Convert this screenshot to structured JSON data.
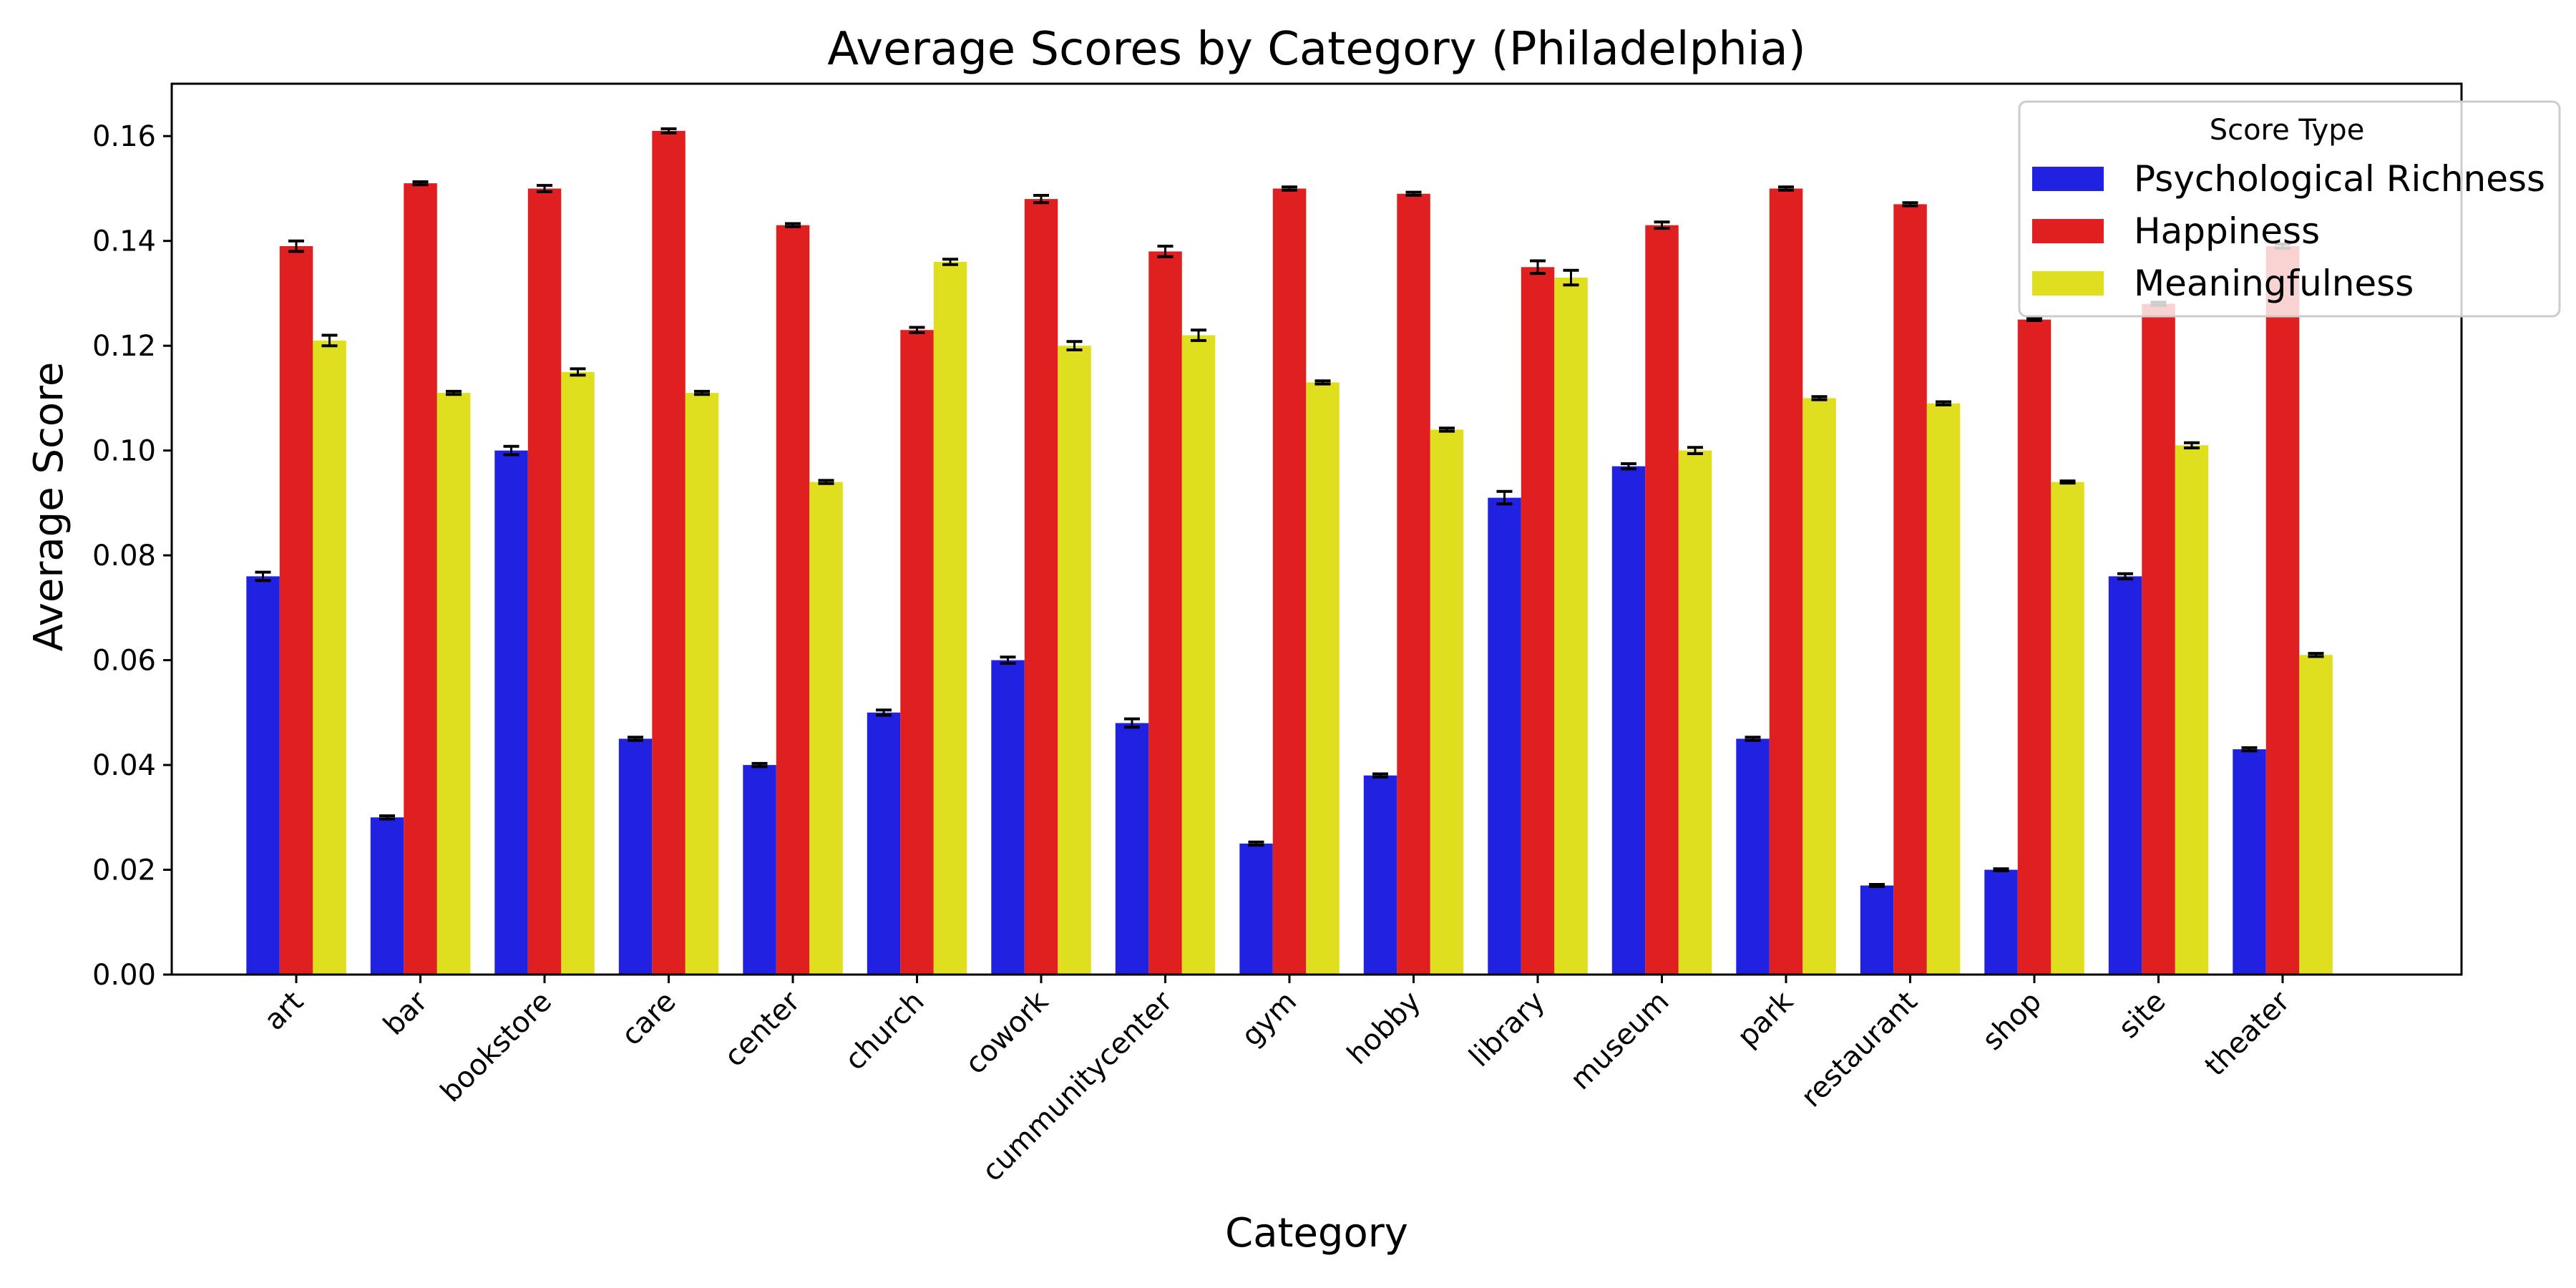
{
  "chart_data": {
    "type": "bar",
    "title": "Average Scores by Category (Philadelphia)",
    "xlabel": "Category",
    "ylabel": "Average Score",
    "ylim": [
      0,
      0.17
    ],
    "yticks": [
      "0.00",
      "0.02",
      "0.04",
      "0.06",
      "0.08",
      "0.10",
      "0.12",
      "0.14",
      "0.16"
    ],
    "grid": false,
    "legend": {
      "title": "Score Type",
      "position": "top-right"
    },
    "categories": [
      "art",
      "bar",
      "bookstore",
      "care",
      "center",
      "church",
      "cowork",
      "cummunitycenter",
      "gym",
      "hobby",
      "library",
      "museum",
      "park",
      "restaurant",
      "shop",
      "site",
      "theater"
    ],
    "series": [
      {
        "name": "Psychological Richness",
        "color": "#2121e1",
        "values": [
          0.076,
          0.03,
          0.1,
          0.045,
          0.04,
          0.05,
          0.06,
          0.048,
          0.025,
          0.038,
          0.091,
          0.097,
          0.045,
          0.017,
          0.02,
          0.076,
          0.043
        ],
        "errors": [
          0.0008,
          0.0003,
          0.0008,
          0.0003,
          0.0003,
          0.0005,
          0.0006,
          0.0008,
          0.0003,
          0.0003,
          0.0012,
          0.0005,
          0.0003,
          0.0002,
          0.0002,
          0.0005,
          0.0003
        ]
      },
      {
        "name": "Happiness",
        "color": "#e02020",
        "values": [
          0.139,
          0.151,
          0.15,
          0.161,
          0.143,
          0.123,
          0.148,
          0.138,
          0.15,
          0.149,
          0.135,
          0.143,
          0.15,
          0.147,
          0.125,
          0.128,
          0.139
        ],
        "errors": [
          0.001,
          0.0003,
          0.0006,
          0.0004,
          0.0003,
          0.0005,
          0.0007,
          0.001,
          0.0003,
          0.0003,
          0.0012,
          0.0006,
          0.0003,
          0.0003,
          0.0002,
          0.0003,
          0.0004
        ]
      },
      {
        "name": "Meaningfulness",
        "color": "#dfdf20",
        "values": [
          0.121,
          0.111,
          0.115,
          0.111,
          0.094,
          0.136,
          0.12,
          0.122,
          0.113,
          0.104,
          0.133,
          0.1,
          0.11,
          0.109,
          0.094,
          0.101,
          0.061
        ],
        "errors": [
          0.001,
          0.0003,
          0.0006,
          0.0003,
          0.0003,
          0.0005,
          0.0008,
          0.001,
          0.0003,
          0.0003,
          0.0014,
          0.0006,
          0.0003,
          0.0003,
          0.0002,
          0.0005,
          0.0003
        ]
      }
    ]
  }
}
